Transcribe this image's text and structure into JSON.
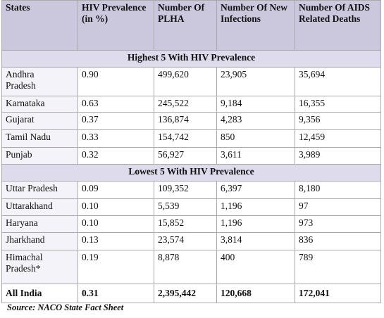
{
  "table": {
    "header": [
      "States",
      "HIV Prevalence (in %)",
      "Number Of PLHA",
      "Number Of New Infections",
      "Number Of AIDS Related Deaths"
    ],
    "sections": [
      {
        "title": "Highest 5 With HIV Prevalence",
        "rows": [
          [
            "Andhra Pradesh",
            "0.90",
            "499,620",
            "23,905",
            "35,694"
          ],
          [
            "Karnataka",
            "0.63",
            "245,522",
            "9,184",
            "16,355"
          ],
          [
            "Gujarat",
            "0.37",
            "136,874",
            "4,283",
            "9,356"
          ],
          [
            "Tamil Nadu",
            "0.33",
            "154,742",
            "850",
            "12,459"
          ],
          [
            "Punjab",
            "0.32",
            "56,927",
            "3,611",
            "3,989"
          ]
        ]
      },
      {
        "title": "Lowest 5 With HIV Prevalence",
        "rows": [
          [
            "Uttar Pradesh",
            "0.09",
            "109,352",
            "6,397",
            "8,180"
          ],
          [
            "Uttarakhand",
            "0.10",
            "5,539",
            "1,196",
            "97"
          ],
          [
            "Haryana",
            "0.10",
            "15,852",
            "1,196",
            "973"
          ],
          [
            "Jharkhand",
            "0.13",
            "23,574",
            "3,814",
            "836"
          ],
          [
            "Himachal Pradesh*",
            "0.19",
            "8,878",
            "400",
            "789"
          ]
        ]
      }
    ],
    "total": [
      "All India",
      "0.31",
      "2,395,442",
      "120,668",
      "172,041"
    ]
  },
  "source": "Source: NACO State Fact Sheet"
}
